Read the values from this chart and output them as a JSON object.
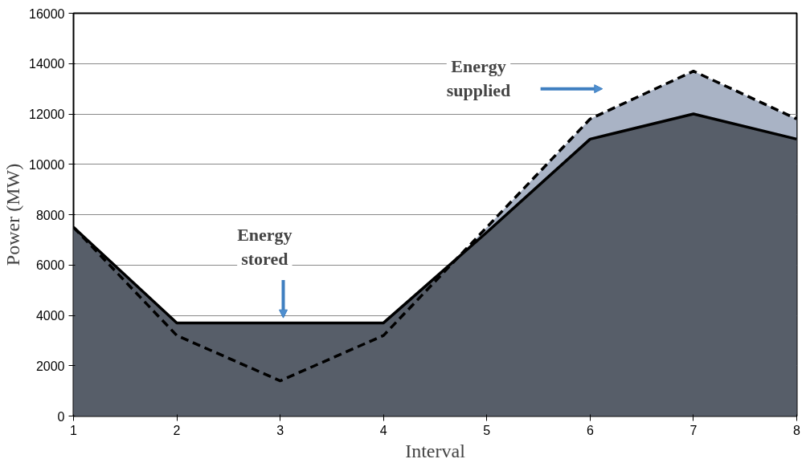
{
  "chart_data": {
    "type": "area",
    "xlabel": "Interval",
    "ylabel": "Power (MW)",
    "x": [
      1,
      2,
      3,
      4,
      5,
      6,
      7,
      8
    ],
    "series": [
      {
        "color": "#a9b3c5",
        "line_style": "dashed",
        "values": [
          7500,
          3200,
          1400,
          3200,
          7500,
          11800,
          13700,
          11800
        ]
      },
      {
        "color": "#575e69",
        "line_style": "solid",
        "values": [
          7500,
          3700,
          3700,
          3700,
          7300,
          11000,
          12000,
          11000
        ]
      }
    ],
    "annotations": [
      "Energy\nstored",
      "Energy\nsupplied"
    ],
    "xlim": [
      1,
      8
    ],
    "xticks": [
      1,
      2,
      3,
      4,
      5,
      6,
      7,
      8
    ],
    "ylim": [
      0,
      16000
    ],
    "yticks": [
      0,
      2000,
      4000,
      6000,
      8000,
      10000,
      12000,
      14000,
      16000
    ],
    "grid": "y"
  }
}
